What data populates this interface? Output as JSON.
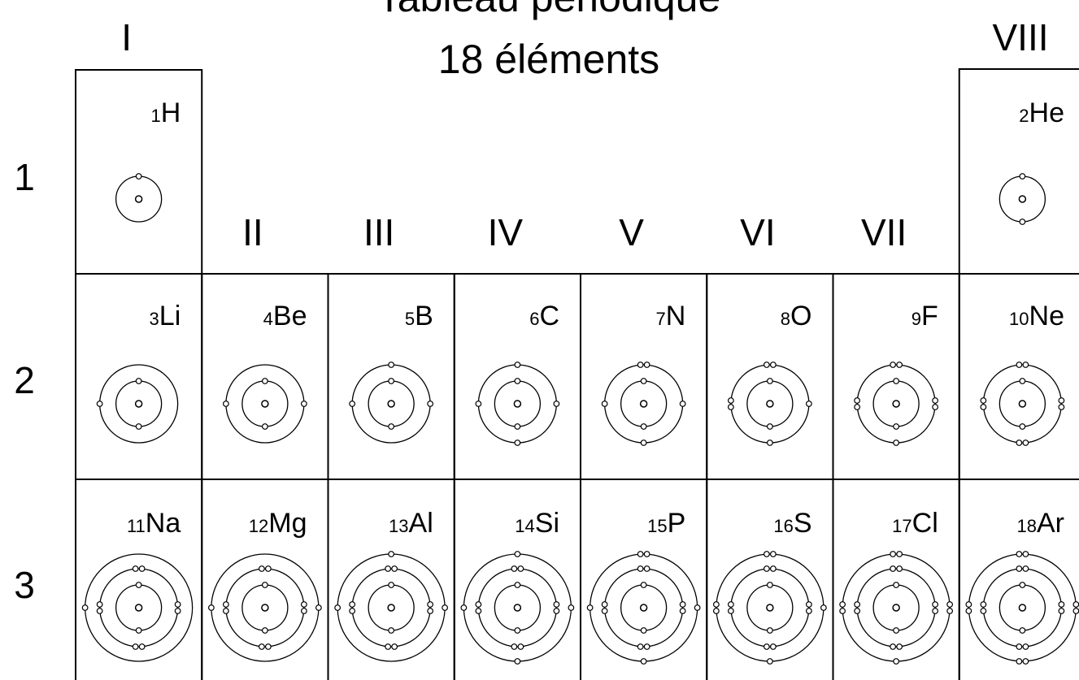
{
  "title": {
    "line1": "Tableau périodique",
    "line2": "18 éléments"
  },
  "groups": [
    "I",
    "II",
    "III",
    "IV",
    "V",
    "VI",
    "VII",
    "VIII"
  ],
  "periods": [
    {
      "label": "1",
      "elements": [
        {
          "number": 1,
          "symbol": "H"
        },
        null,
        null,
        null,
        null,
        null,
        null,
        {
          "number": 2,
          "symbol": "He"
        }
      ]
    },
    {
      "label": "2",
      "elements": [
        {
          "number": 3,
          "symbol": "Li"
        },
        {
          "number": 4,
          "symbol": "Be"
        },
        {
          "number": 5,
          "symbol": "B"
        },
        {
          "number": 6,
          "symbol": "C"
        },
        {
          "number": 7,
          "symbol": "N"
        },
        {
          "number": 8,
          "symbol": "O"
        },
        {
          "number": 9,
          "symbol": "F"
        },
        {
          "number": 10,
          "symbol": "Ne"
        }
      ]
    },
    {
      "label": "3",
      "elements": [
        {
          "number": 11,
          "symbol": "Na"
        },
        {
          "number": 12,
          "symbol": "Mg"
        },
        {
          "number": 13,
          "symbol": "Al"
        },
        {
          "number": 14,
          "symbol": "Si"
        },
        {
          "number": 15,
          "symbol": "P"
        },
        {
          "number": 16,
          "symbol": "S"
        },
        {
          "number": 17,
          "symbol": "Cl"
        },
        {
          "number": 18,
          "symbol": "Ar"
        }
      ]
    }
  ]
}
